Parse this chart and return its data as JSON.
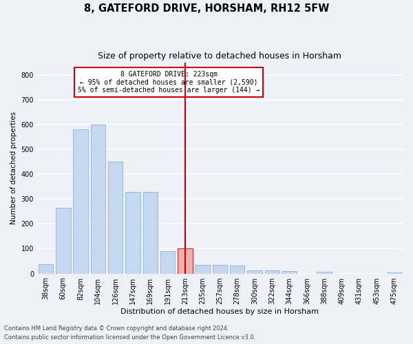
{
  "title": "8, GATEFORD DRIVE, HORSHAM, RH12 5FW",
  "subtitle": "Size of property relative to detached houses in Horsham",
  "xlabel": "Distribution of detached houses by size in Horsham",
  "ylabel": "Number of detached properties",
  "bar_labels": [
    "38sqm",
    "60sqm",
    "82sqm",
    "104sqm",
    "126sqm",
    "147sqm",
    "169sqm",
    "191sqm",
    "213sqm",
    "235sqm",
    "257sqm",
    "278sqm",
    "300sqm",
    "322sqm",
    "344sqm",
    "366sqm",
    "388sqm",
    "409sqm",
    "431sqm",
    "453sqm",
    "475sqm"
  ],
  "bar_values": [
    38,
    265,
    580,
    600,
    450,
    328,
    328,
    90,
    100,
    35,
    35,
    32,
    14,
    12,
    10,
    0,
    8,
    0,
    0,
    0,
    5
  ],
  "bar_color": "#c5d8f0",
  "bar_edge_color": "#8ab4d8",
  "highlight_bar_index": 8,
  "highlight_bar_color": "#f0b0b0",
  "highlight_bar_edge_color": "#cc0000",
  "vline_color": "#cc0000",
  "annotation_text": "8 GATEFORD DRIVE: 223sqm\n← 95% of detached houses are smaller (2,590)\n5% of semi-detached houses are larger (144) →",
  "annotation_box_color": "#cc0000",
  "ylim": [
    0,
    850
  ],
  "yticks": [
    0,
    100,
    200,
    300,
    400,
    500,
    600,
    700,
    800
  ],
  "footer_line1": "Contains HM Land Registry data © Crown copyright and database right 2024.",
  "footer_line2": "Contains public sector information licensed under the Open Government Licence v3.0.",
  "bg_color": "#eef2f8",
  "grid_color": "#ffffff",
  "title_fontsize": 10.5,
  "subtitle_fontsize": 9,
  "tick_fontsize": 7,
  "ylabel_fontsize": 7.5,
  "xlabel_fontsize": 8,
  "annotation_fontsize": 7,
  "footer_fontsize": 6
}
